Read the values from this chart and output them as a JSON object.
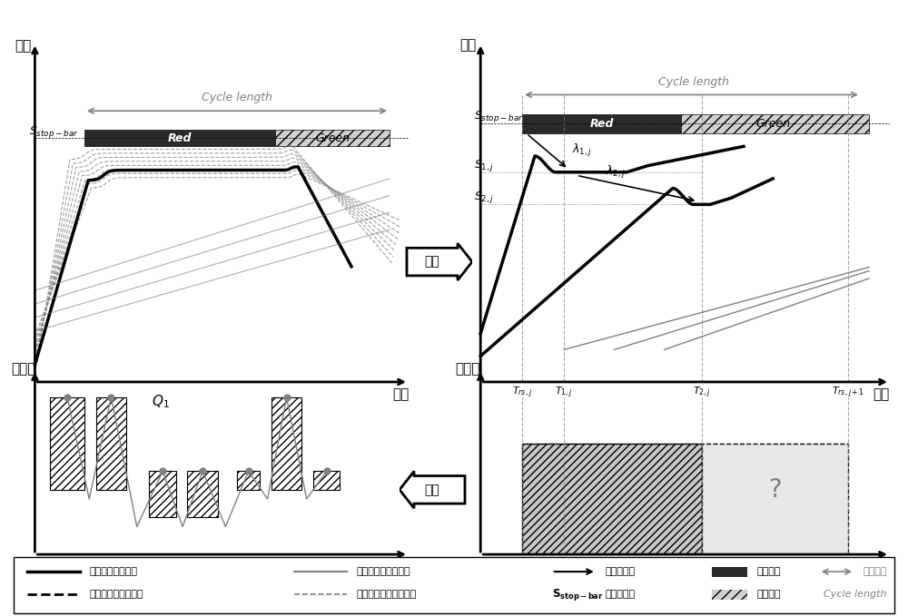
{
  "bg_color": "#ffffff",
  "text_color": "#000000",
  "gray_color": "#888888",
  "dark_gray": "#444444",
  "light_gray": "#cccccc",
  "red_color": "#333333",
  "green_hatch_color": "#aaaaaa",
  "panel_titles": [
    "距离",
    "距离",
    "到达率",
    "到达率"
  ],
  "xlabel": "时间",
  "ylabel_dist": "距离",
  "ylabel_rate": "到达率",
  "arrow_label_sampling": "抽样",
  "arrow_label_reconstruct": "重构",
  "cycle_length_label": "Cycle length",
  "red_label": "Red",
  "green_label": "Green",
  "s_stop_bar": "S_stop-bar",
  "q1_label": "Q_1",
  "s1j_label": "S_{1,j}",
  "s2j_label": "S_{2,j}",
  "lambda1j_label": "\\lambda_{1,j}",
  "lambda2j_label": "\\lambda_{2,j}",
  "trsj_label": "T_{rs,j}",
  "t1j_label": "T_{1,j}",
  "t2j_label": "T_{2,j}",
  "trsj1_label": "T_{rs,j+1}",
  "question_mark": "?",
  "legend_entries": [
    "抽样排队车辆轨迹",
    "抽样非排队车辆轨迹",
    "非抽样排队车辆轨迹",
    "非抽样非排队车辆轨迹",
    "排队交通波",
    "Red",
    "红灯相位",
    "Cycle length",
    "周期长度",
    "S_stop-bar",
    "停车线位置",
    "Green",
    "绿灯相位"
  ]
}
